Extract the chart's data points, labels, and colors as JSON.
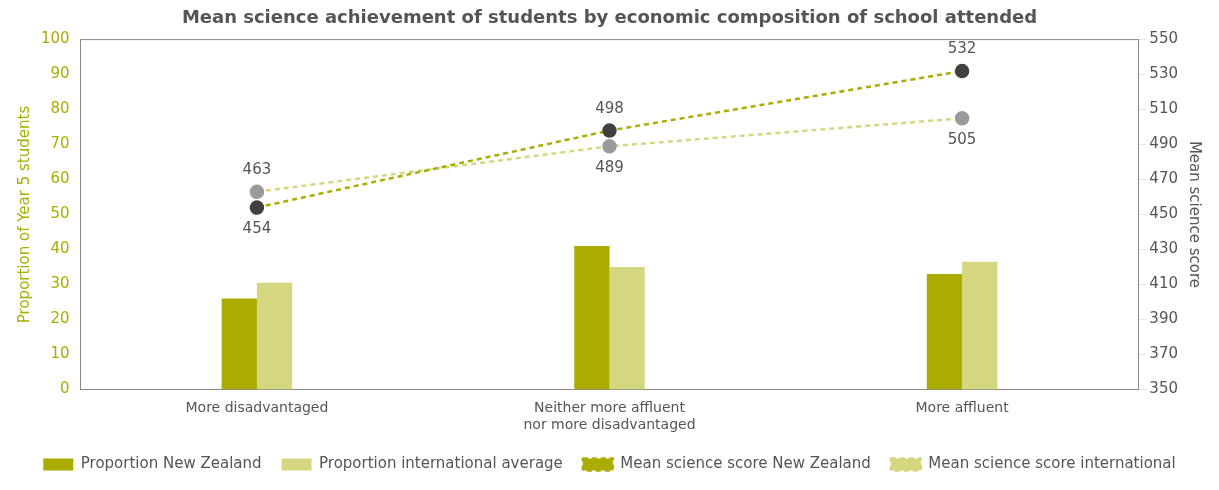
{
  "chart_data": {
    "type": "bar",
    "title": "Mean science achievement of students by economic composition of school attended",
    "categories": [
      "More disadvantaged",
      "Neither more affluent nor more disadvantaged",
      "More affluent"
    ],
    "series": [
      {
        "name": "Proportion New Zealand",
        "color": "#aaad00",
        "values": [
          26,
          41,
          33
        ]
      },
      {
        "name": "Proportion international average",
        "color": "#d4d77f",
        "values": [
          30.5,
          35,
          36.5
        ]
      },
      {
        "name": "Mean science score New Zealand",
        "type": "line",
        "axis": "y2",
        "color": "#aaad00",
        "values": [
          454,
          498,
          532
        ],
        "value_labels": [
          "454",
          "498",
          "532"
        ],
        "marker": "circle",
        "line_style": "dashed"
      },
      {
        "name": "Mean science score international",
        "type": "line",
        "axis": "y2",
        "color": "#d4d77f",
        "values": [
          463,
          489,
          505
        ],
        "value_labels": [
          "463",
          "489",
          "505"
        ],
        "marker": "circle",
        "line_style": "dashed"
      }
    ],
    "ylabel": "Proportion of Year 5 students",
    "y2label": "Mean science score",
    "ylim": [
      0,
      100
    ],
    "yticks": [
      0,
      10,
      20,
      30,
      40,
      50,
      60,
      70,
      80,
      90,
      100
    ],
    "y2lim": [
      350,
      550
    ],
    "y2ticks": [
      350,
      370,
      390,
      410,
      430,
      450,
      470,
      490,
      510,
      530,
      550
    ],
    "grid": false,
    "legend": "bottom"
  }
}
